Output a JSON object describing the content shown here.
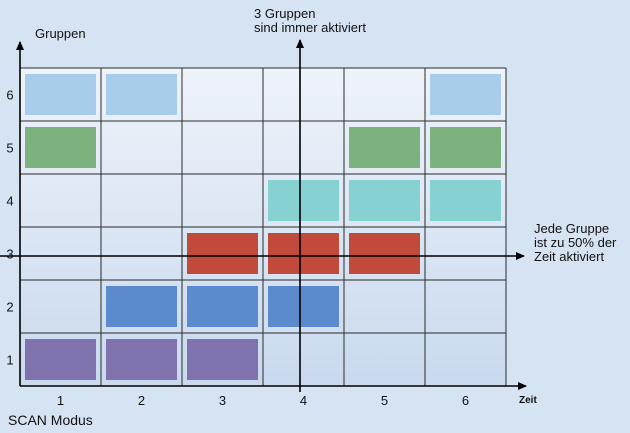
{
  "labels": {
    "y_axis_title": "Gruppen",
    "x_axis_title": "Zeit",
    "bottom_caption": "SCAN Modus",
    "top_annotation": [
      "3 Gruppen",
      "sind immer aktiviert"
    ],
    "right_annotation": [
      "Jede Gruppe",
      "ist zu 50% der",
      "Zeit aktiviert"
    ]
  },
  "colors": {
    "background": "#d6e3f3",
    "grid_cell_top": "#eef3fa",
    "grid_cell_bottom": "#c9d9ee",
    "grid_line": "#2b2b2b",
    "axis": "#000000",
    "groups": {
      "1": "#7f72ad",
      "2": "#5b8bcc",
      "3": "#c24a3a",
      "4": "#86d2d2",
      "5": "#7bb27d",
      "6": "#a8cdea"
    }
  },
  "chart_data": {
    "type": "heatmap",
    "x_ticks": [
      "1",
      "2",
      "3",
      "4",
      "5",
      "6"
    ],
    "y_ticks": [
      "1",
      "2",
      "3",
      "4",
      "5",
      "6"
    ],
    "xlabel": "Zeit",
    "ylabel": "Gruppen",
    "markers": {
      "vertical_line_at_x": 4,
      "horizontal_line_at_y": 3
    },
    "active": [
      {
        "group": 1,
        "times": [
          1,
          2,
          3
        ]
      },
      {
        "group": 2,
        "times": [
          2,
          3,
          4
        ]
      },
      {
        "group": 3,
        "times": [
          3,
          4,
          5
        ]
      },
      {
        "group": 4,
        "times": [
          4,
          5,
          6
        ]
      },
      {
        "group": 5,
        "times": [
          1,
          5,
          6
        ]
      },
      {
        "group": 6,
        "times": [
          1,
          2,
          6
        ]
      }
    ]
  }
}
